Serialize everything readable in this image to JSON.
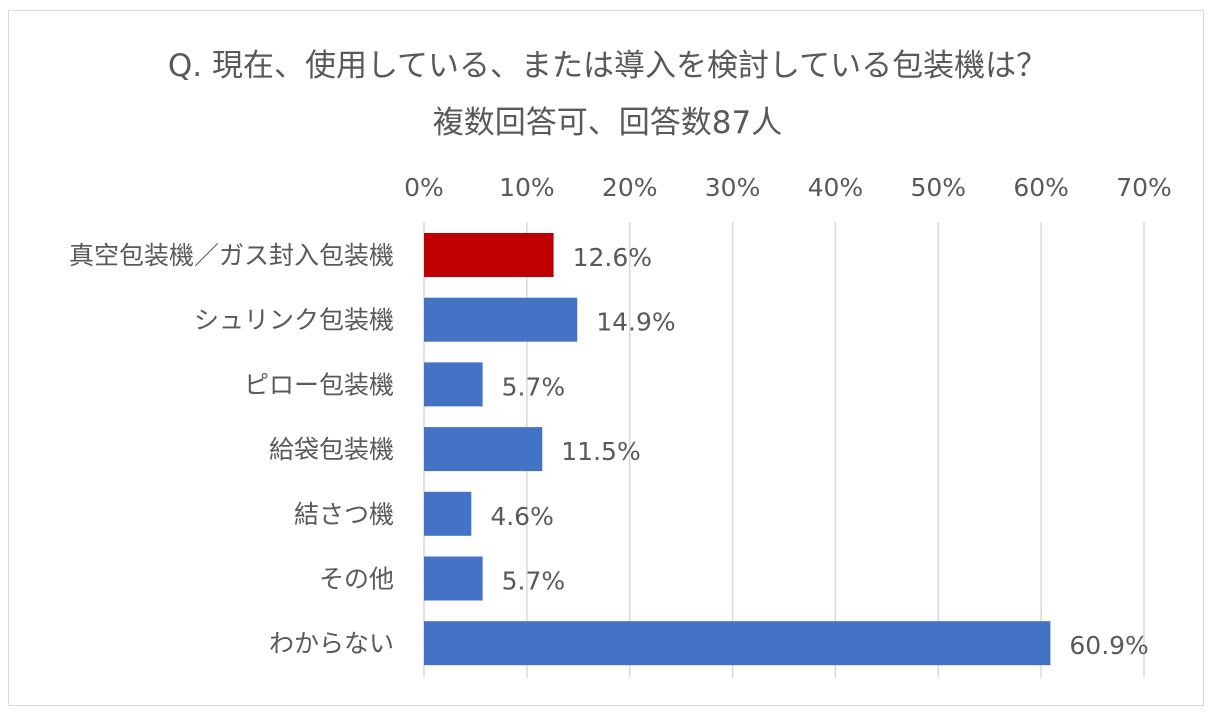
{
  "chart_data": {
    "type": "bar",
    "orientation": "horizontal",
    "title_lines": [
      "Q. 現在、使用している、または導入を検討している包装機は？",
      "複数回答可、回答数87人"
    ],
    "categories": [
      "真空包装機／ガス封入包装機",
      "シュリンク包装機",
      "ピロー包装機",
      "給袋包装機",
      "結さつ機",
      "その他",
      "わからない"
    ],
    "values": [
      12.6,
      14.9,
      5.7,
      11.5,
      4.6,
      5.7,
      60.9
    ],
    "data_labels": [
      "12.6%",
      "14.9%",
      "5.7%",
      "11.5%",
      "4.6%",
      "5.7%",
      "60.9%"
    ],
    "x_ticks": [
      0,
      10,
      20,
      30,
      40,
      50,
      60,
      70
    ],
    "x_tick_labels": [
      "0%",
      "10%",
      "20%",
      "30%",
      "40%",
      "50%",
      "60%",
      "70%"
    ],
    "xlim": [
      0,
      70
    ],
    "x_axis_position": "top",
    "grid": true,
    "legend": "none",
    "colors": {
      "highlight": "#c00000",
      "default": "#4472c4",
      "grid": "#d9d9d9",
      "text": "#595959"
    },
    "highlight_index": 0
  }
}
